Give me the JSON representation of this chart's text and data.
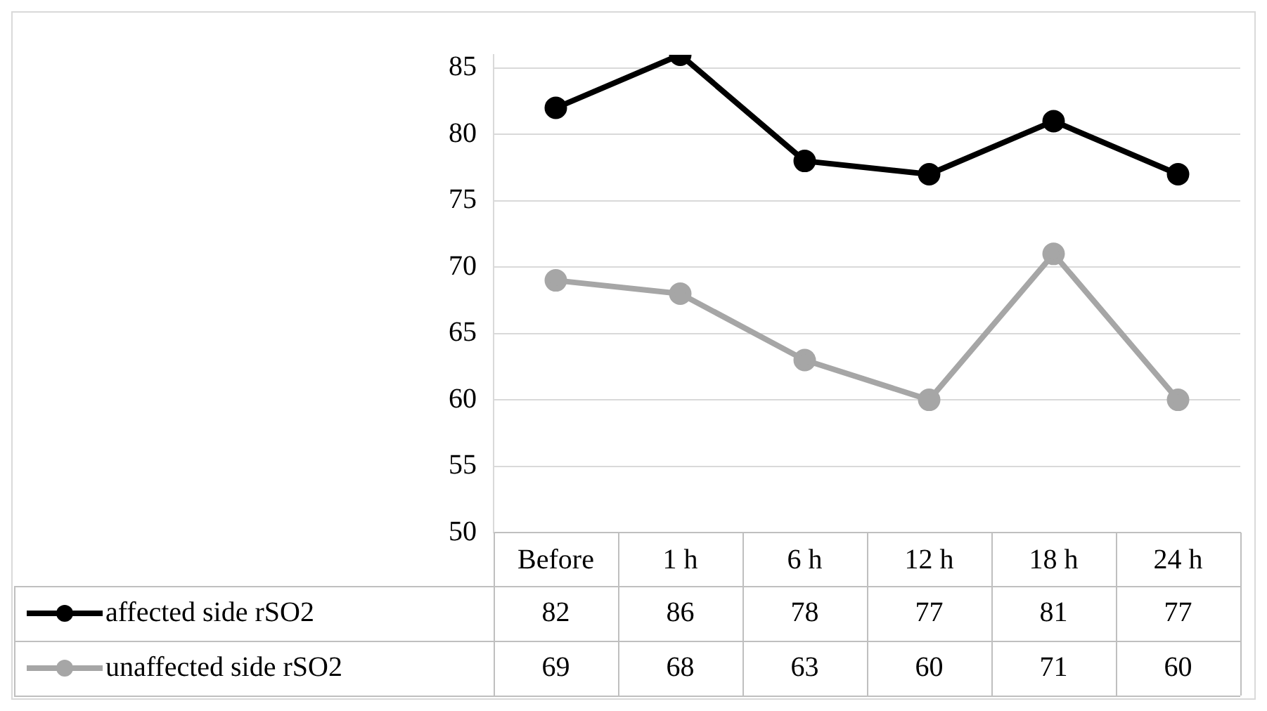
{
  "chart_data": {
    "type": "line",
    "categories": [
      "Before",
      "1 h",
      "6 h",
      "12 h",
      "18 h",
      "24 h"
    ],
    "series": [
      {
        "name": "affected side rSO2",
        "color": "#000000",
        "values": [
          82,
          86,
          78,
          77,
          81,
          77
        ]
      },
      {
        "name": "unaffected side rSO2",
        "color": "#a6a6a6",
        "values": [
          69,
          68,
          63,
          60,
          71,
          60
        ]
      }
    ],
    "ylim": [
      50,
      86
    ],
    "yticks": [
      50,
      55,
      60,
      65,
      70,
      75,
      80,
      85
    ],
    "grid": "y",
    "legend": "bottom",
    "data_labels": true,
    "marker": "circle",
    "line_style": "solid"
  }
}
